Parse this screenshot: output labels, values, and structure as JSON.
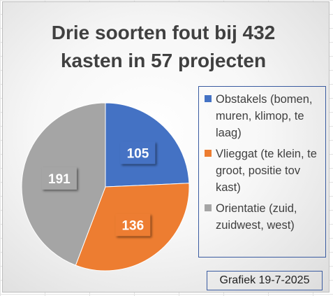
{
  "chart_data": {
    "type": "pie",
    "title_lines": [
      "Drie soorten fout bij 432",
      "kasten in 57 projecten"
    ],
    "slices": [
      {
        "name": "Obstakels (bomen, muren, klimop, te laag)",
        "value": 105,
        "label": "105",
        "color": "#4472C4"
      },
      {
        "name": "Vlieggat (te klein, te groot, positie tov kast)",
        "value": 136,
        "label": "136",
        "color": "#ED7D31"
      },
      {
        "name": "Orientatie (zuid, zuidwest, west)",
        "value": 191,
        "label": "191",
        "color": "#A5A5A5"
      }
    ],
    "start_angle_deg": 0,
    "direction": "clockwise",
    "legend_position": "right",
    "caption": "Grafiek 19-7-2025"
  }
}
